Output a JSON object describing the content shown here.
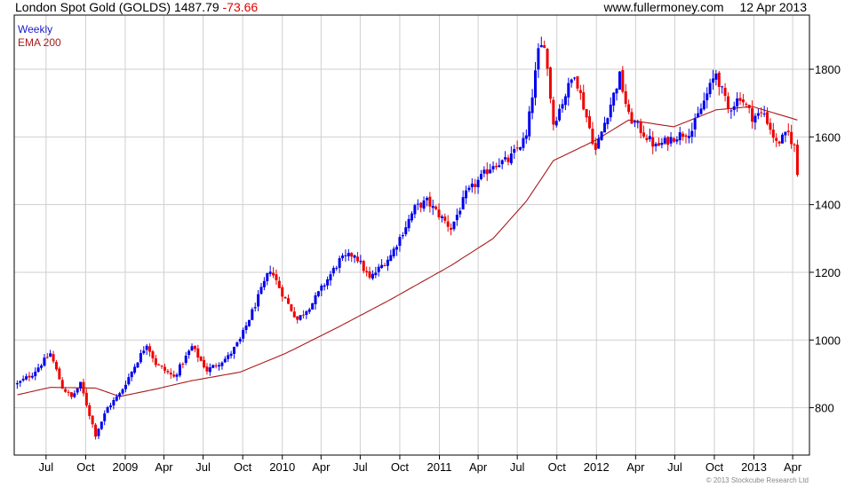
{
  "header": {
    "title": "London Spot Gold (GOLDS)",
    "last_price": "1487.79",
    "change": "-73.66",
    "site": "www.fullermoney.com",
    "date": "12 Apr 2013"
  },
  "legend": {
    "weekly": "Weekly",
    "ema": "EMA 200"
  },
  "copyright": "© 2013 Stockcube Research Ltd",
  "colors": {
    "up": "#0000ee",
    "down": "#ee0000",
    "ema": "#aa1a1a",
    "grid": "#cfcfcf",
    "border": "#000000"
  },
  "chart_data": {
    "type": "candlestick",
    "title": "London Spot Gold (GOLDS)",
    "frequency": "Weekly",
    "ylim": [
      660,
      1960
    ],
    "yticks": [
      800,
      1000,
      1200,
      1400,
      1600,
      1800
    ],
    "xticks": [
      {
        "label": "Jul",
        "date": "2008-07-01"
      },
      {
        "label": "Oct",
        "date": "2008-10-01"
      },
      {
        "label": "2009",
        "date": "2009-01-01"
      },
      {
        "label": "Apr",
        "date": "2009-04-01"
      },
      {
        "label": "Jul",
        "date": "2009-07-01"
      },
      {
        "label": "Oct",
        "date": "2009-10-01"
      },
      {
        "label": "2010",
        "date": "2010-01-01"
      },
      {
        "label": "Apr",
        "date": "2010-04-01"
      },
      {
        "label": "Jul",
        "date": "2010-07-01"
      },
      {
        "label": "Oct",
        "date": "2010-10-01"
      },
      {
        "label": "2011",
        "date": "2011-01-01"
      },
      {
        "label": "Apr",
        "date": "2011-04-01"
      },
      {
        "label": "Jul",
        "date": "2011-07-01"
      },
      {
        "label": "Oct",
        "date": "2011-10-01"
      },
      {
        "label": "2012",
        "date": "2012-01-01"
      },
      {
        "label": "Apr",
        "date": "2012-04-01"
      },
      {
        "label": "Jul",
        "date": "2012-07-01"
      },
      {
        "label": "Oct",
        "date": "2012-10-01"
      },
      {
        "label": "2013",
        "date": "2013-01-01"
      },
      {
        "label": "Apr",
        "date": "2013-04-01"
      }
    ],
    "xlim": [
      "2008-04-18",
      "2013-05-10"
    ],
    "grid": true,
    "legend_position": "top-left",
    "close_anchors": [
      [
        "2008-04-25",
        870
      ],
      [
        "2008-05-30",
        900
      ],
      [
        "2008-07-11",
        960
      ],
      [
        "2008-08-08",
        860
      ],
      [
        "2008-08-29",
        830
      ],
      [
        "2008-09-19",
        870
      ],
      [
        "2008-10-24",
        720
      ],
      [
        "2008-11-21",
        800
      ],
      [
        "2008-12-19",
        840
      ],
      [
        "2009-02-20",
        990
      ],
      [
        "2009-03-13",
        930
      ],
      [
        "2009-04-24",
        890
      ],
      [
        "2009-06-05",
        980
      ],
      [
        "2009-07-10",
        910
      ],
      [
        "2009-08-28",
        950
      ],
      [
        "2009-09-25",
        1000
      ],
      [
        "2009-12-04",
        1210
      ],
      [
        "2010-01-08",
        1120
      ],
      [
        "2010-02-05",
        1060
      ],
      [
        "2010-03-12",
        1110
      ],
      [
        "2010-05-14",
        1235
      ],
      [
        "2010-06-18",
        1255
      ],
      [
        "2010-07-23",
        1180
      ],
      [
        "2010-09-10",
        1250
      ],
      [
        "2010-11-05",
        1390
      ],
      [
        "2010-12-03",
        1410
      ],
      [
        "2011-01-28",
        1330
      ],
      [
        "2011-03-04",
        1430
      ],
      [
        "2011-05-06",
        1520
      ],
      [
        "2011-06-10",
        1530
      ],
      [
        "2011-07-22",
        1600
      ],
      [
        "2011-08-19",
        1850
      ],
      [
        "2011-09-02",
        1880
      ],
      [
        "2011-09-23",
        1640
      ],
      [
        "2011-11-11",
        1790
      ],
      [
        "2011-12-30",
        1560
      ],
      [
        "2012-02-24",
        1780
      ],
      [
        "2012-03-16",
        1660
      ],
      [
        "2012-05-18",
        1570
      ],
      [
        "2012-06-29",
        1600
      ],
      [
        "2012-08-10",
        1620
      ],
      [
        "2012-10-05",
        1790
      ],
      [
        "2012-11-02",
        1680
      ],
      [
        "2012-11-30",
        1720
      ],
      [
        "2012-12-28",
        1660
      ],
      [
        "2013-01-25",
        1670
      ],
      [
        "2013-02-22",
        1580
      ],
      [
        "2013-03-22",
        1610
      ],
      [
        "2013-04-05",
        1570
      ],
      [
        "2013-04-12",
        1487.79
      ]
    ],
    "ema_anchors": [
      [
        "2008-04-25",
        838
      ],
      [
        "2008-07-11",
        860
      ],
      [
        "2008-10-24",
        858
      ],
      [
        "2008-12-19",
        833
      ],
      [
        "2009-03-13",
        855
      ],
      [
        "2009-06-05",
        880
      ],
      [
        "2009-09-25",
        905
      ],
      [
        "2010-01-08",
        960
      ],
      [
        "2010-05-14",
        1040
      ],
      [
        "2010-09-10",
        1120
      ],
      [
        "2011-01-28",
        1220
      ],
      [
        "2011-05-06",
        1300
      ],
      [
        "2011-07-22",
        1410
      ],
      [
        "2011-09-23",
        1530
      ],
      [
        "2011-12-30",
        1590
      ],
      [
        "2012-03-16",
        1650
      ],
      [
        "2012-06-29",
        1630
      ],
      [
        "2012-10-05",
        1680
      ],
      [
        "2012-12-28",
        1690
      ],
      [
        "2013-04-12",
        1650
      ]
    ]
  }
}
